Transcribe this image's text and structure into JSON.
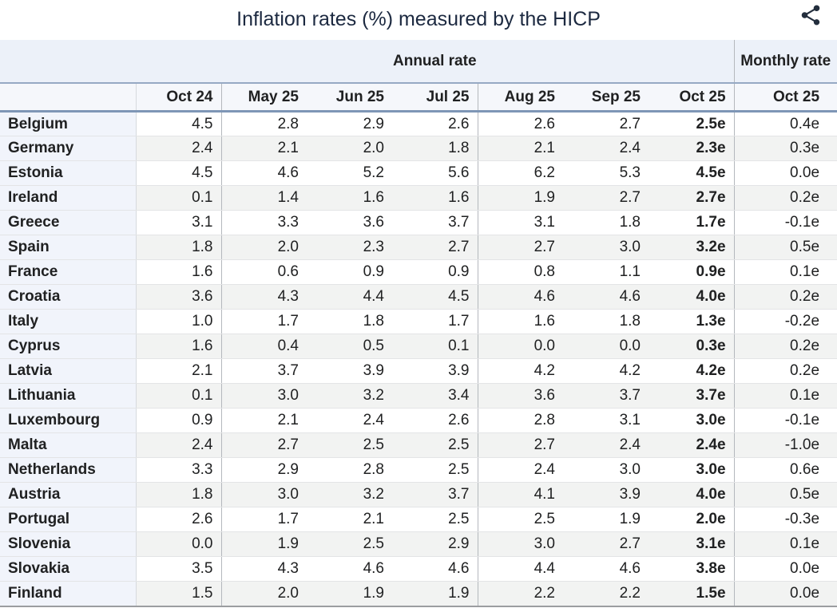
{
  "share_label": "share-icon",
  "colors": {
    "title_text": "#1c2940",
    "header_band_bg": "#ecf1f9",
    "header_row_bg": "#f5f7fb",
    "country_column_bg": "#f1f4fb",
    "alt_row_bg": "#f2f3f2",
    "header_rule_top": "#96a9c4",
    "header_rule_bottom": "#7e96b6",
    "group_separator": "#b4b8bd",
    "table_bottom_border": "#9b9da0",
    "icon_color": "#232e3d"
  },
  "chart_data": {
    "type": "table",
    "title": "Inflation rates (%) measured by the HICP",
    "column_groups": [
      {
        "label": "Annual rate",
        "span": 7
      },
      {
        "label": "Monthly rate",
        "span": 1
      }
    ],
    "columns": [
      "Oct 24",
      "May 25",
      "Jun 25",
      "Jul 25",
      "Aug 25",
      "Sep 25",
      "Oct 25",
      "Oct 25"
    ],
    "rows": [
      {
        "country": "Belgium",
        "values": [
          "4.5",
          "2.8",
          "2.9",
          "2.6",
          "2.6",
          "2.7",
          "2.5e",
          "0.4e"
        ]
      },
      {
        "country": "Germany",
        "values": [
          "2.4",
          "2.1",
          "2.0",
          "1.8",
          "2.1",
          "2.4",
          "2.3e",
          "0.3e"
        ]
      },
      {
        "country": "Estonia",
        "values": [
          "4.5",
          "4.6",
          "5.2",
          "5.6",
          "6.2",
          "5.3",
          "4.5e",
          "0.0e"
        ]
      },
      {
        "country": "Ireland",
        "values": [
          "0.1",
          "1.4",
          "1.6",
          "1.6",
          "1.9",
          "2.7",
          "2.7e",
          "0.2e"
        ]
      },
      {
        "country": "Greece",
        "values": [
          "3.1",
          "3.3",
          "3.6",
          "3.7",
          "3.1",
          "1.8",
          "1.7e",
          "-0.1e"
        ]
      },
      {
        "country": "Spain",
        "values": [
          "1.8",
          "2.0",
          "2.3",
          "2.7",
          "2.7",
          "3.0",
          "3.2e",
          "0.5e"
        ]
      },
      {
        "country": "France",
        "values": [
          "1.6",
          "0.6",
          "0.9",
          "0.9",
          "0.8",
          "1.1",
          "0.9e",
          "0.1e"
        ]
      },
      {
        "country": "Croatia",
        "values": [
          "3.6",
          "4.3",
          "4.4",
          "4.5",
          "4.6",
          "4.6",
          "4.0e",
          "0.2e"
        ]
      },
      {
        "country": "Italy",
        "values": [
          "1.0",
          "1.7",
          "1.8",
          "1.7",
          "1.6",
          "1.8",
          "1.3e",
          "-0.2e"
        ]
      },
      {
        "country": "Cyprus",
        "values": [
          "1.6",
          "0.4",
          "0.5",
          "0.1",
          "0.0",
          "0.0",
          "0.3e",
          "0.2e"
        ]
      },
      {
        "country": "Latvia",
        "values": [
          "2.1",
          "3.7",
          "3.9",
          "3.9",
          "4.2",
          "4.2",
          "4.2e",
          "0.2e"
        ]
      },
      {
        "country": "Lithuania",
        "values": [
          "0.1",
          "3.0",
          "3.2",
          "3.4",
          "3.6",
          "3.7",
          "3.7e",
          "0.1e"
        ]
      },
      {
        "country": "Luxembourg",
        "values": [
          "0.9",
          "2.1",
          "2.4",
          "2.6",
          "2.8",
          "3.1",
          "3.0e",
          "-0.1e"
        ]
      },
      {
        "country": "Malta",
        "values": [
          "2.4",
          "2.7",
          "2.5",
          "2.5",
          "2.7",
          "2.4",
          "2.4e",
          "-1.0e"
        ]
      },
      {
        "country": "Netherlands",
        "values": [
          "3.3",
          "2.9",
          "2.8",
          "2.5",
          "2.4",
          "3.0",
          "3.0e",
          "0.6e"
        ]
      },
      {
        "country": "Austria",
        "values": [
          "1.8",
          "3.0",
          "3.2",
          "3.7",
          "4.1",
          "3.9",
          "4.0e",
          "0.5e"
        ]
      },
      {
        "country": "Portugal",
        "values": [
          "2.6",
          "1.7",
          "2.1",
          "2.5",
          "2.5",
          "1.9",
          "2.0e",
          "-0.3e"
        ]
      },
      {
        "country": "Slovenia",
        "values": [
          "0.0",
          "1.9",
          "2.5",
          "2.9",
          "3.0",
          "2.7",
          "3.1e",
          "0.1e"
        ]
      },
      {
        "country": "Slovakia",
        "values": [
          "3.5",
          "4.3",
          "4.6",
          "4.6",
          "4.4",
          "4.6",
          "3.8e",
          "0.0e"
        ]
      },
      {
        "country": "Finland",
        "values": [
          "1.5",
          "2.0",
          "1.9",
          "1.9",
          "2.2",
          "2.2",
          "1.5e",
          "0.0e"
        ]
      }
    ]
  }
}
